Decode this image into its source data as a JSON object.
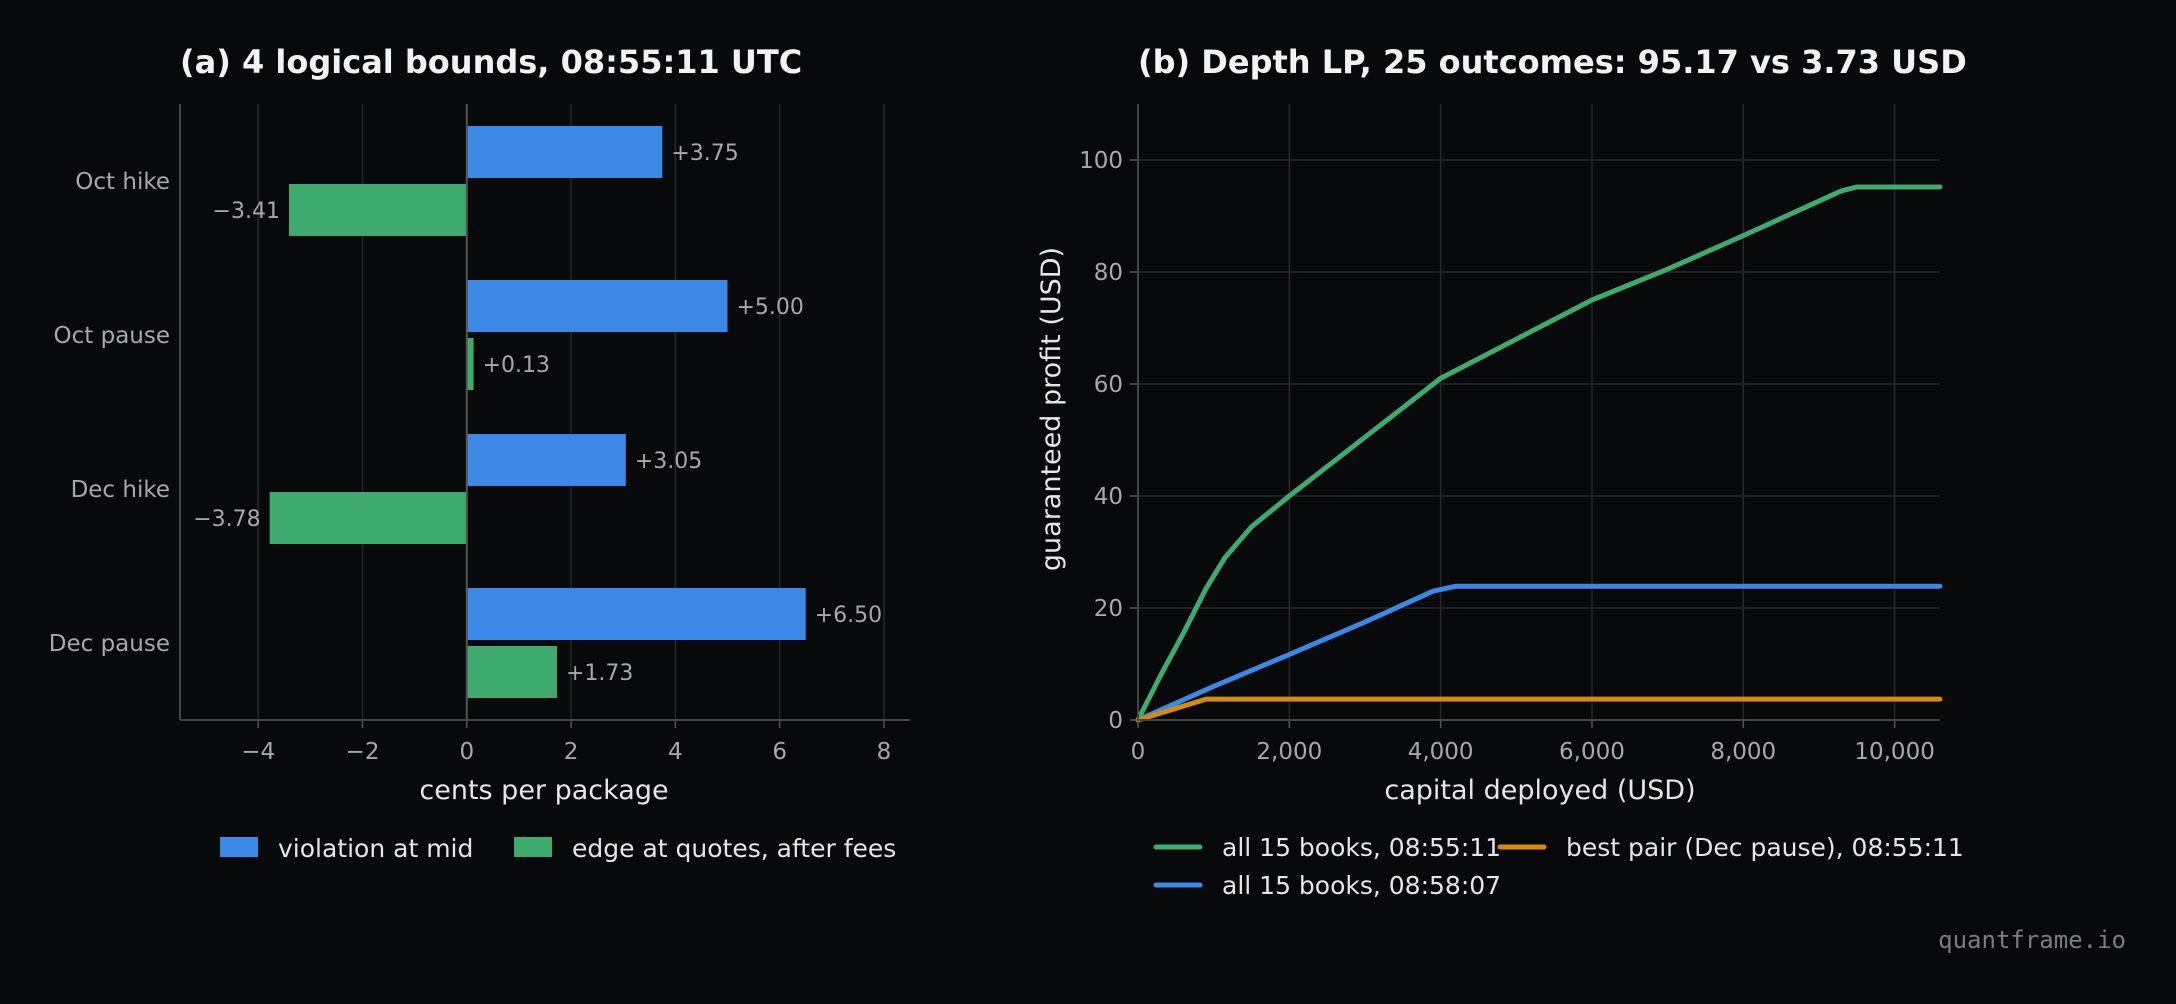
{
  "watermark": "quantframe.io",
  "chart_data": [
    {
      "type": "bar",
      "orientation": "horizontal",
      "title": "(a) 4 logical bounds, 08:55:11 UTC",
      "xlabel": "cents per package",
      "ylabel": "",
      "xlim": [
        -5.5,
        8.5
      ],
      "xticks": [
        -4,
        -2,
        0,
        2,
        4,
        6,
        8
      ],
      "xtick_labels": [
        "−4",
        "−2",
        "0",
        "2",
        "4",
        "6",
        "8"
      ],
      "grid": "vertical",
      "legend_position": "bottom",
      "categories": [
        "Oct hike",
        "Oct pause",
        "Dec hike",
        "Dec pause"
      ],
      "series": [
        {
          "name": "violation at mid",
          "color": "#3b88e6",
          "values": [
            3.75,
            5.0,
            3.05,
            6.5
          ],
          "labels": [
            "+3.75",
            "+5.00",
            "+3.05",
            "+6.50"
          ]
        },
        {
          "name": "edge at quotes, after fees",
          "color": "#3faa6e",
          "values": [
            -3.41,
            0.13,
            -3.78,
            1.73
          ],
          "labels": [
            "−3.41",
            "+0.13",
            "−3.78",
            "+1.73"
          ]
        }
      ]
    },
    {
      "type": "line",
      "title": "(b) Depth LP, 25 outcomes: 95.17 vs 3.73 USD",
      "xlabel": "capital deployed (USD)",
      "ylabel": "guaranteed profit (USD)",
      "xlim": [
        0,
        10600
      ],
      "ylim": [
        0,
        110
      ],
      "xticks": [
        0,
        2000,
        4000,
        6000,
        8000,
        10000
      ],
      "xtick_labels": [
        "0",
        "2,000",
        "4,000",
        "6,000",
        "8,000",
        "10,000"
      ],
      "yticks": [
        0,
        20,
        40,
        60,
        80,
        100
      ],
      "ytick_labels": [
        "0",
        "20",
        "40",
        "60",
        "80",
        "100"
      ],
      "grid": "both",
      "legend_position": "bottom",
      "series": [
        {
          "name": "all 15 books, 08:55:11",
          "color": "#3faa6e",
          "points": [
            [
              0,
              0
            ],
            [
              300,
              8
            ],
            [
              600,
              15.5
            ],
            [
              900,
              23.5
            ],
            [
              1150,
              29
            ],
            [
              1500,
              34.5
            ],
            [
              2000,
              40
            ],
            [
              3000,
              50.5
            ],
            [
              4000,
              61
            ],
            [
              5000,
              68
            ],
            [
              6000,
              75
            ],
            [
              7000,
              80.5
            ],
            [
              8000,
              86.5
            ],
            [
              9300,
              94.5
            ],
            [
              9500,
              95.17
            ],
            [
              10600,
              95.17
            ]
          ]
        },
        {
          "name": "all 15 books, 08:58:07",
          "color": "#3b88e6",
          "points": [
            [
              0,
              0
            ],
            [
              1000,
              6
            ],
            [
              2000,
              11.7
            ],
            [
              3000,
              17.5
            ],
            [
              3900,
              23
            ],
            [
              4200,
              23.9
            ],
            [
              10600,
              23.9
            ]
          ]
        },
        {
          "name": "best pair (Dec pause), 08:55:11",
          "color": "#d68a0f",
          "points": [
            [
              0,
              0
            ],
            [
              900,
              3.73
            ],
            [
              10600,
              3.73
            ]
          ]
        }
      ]
    }
  ]
}
